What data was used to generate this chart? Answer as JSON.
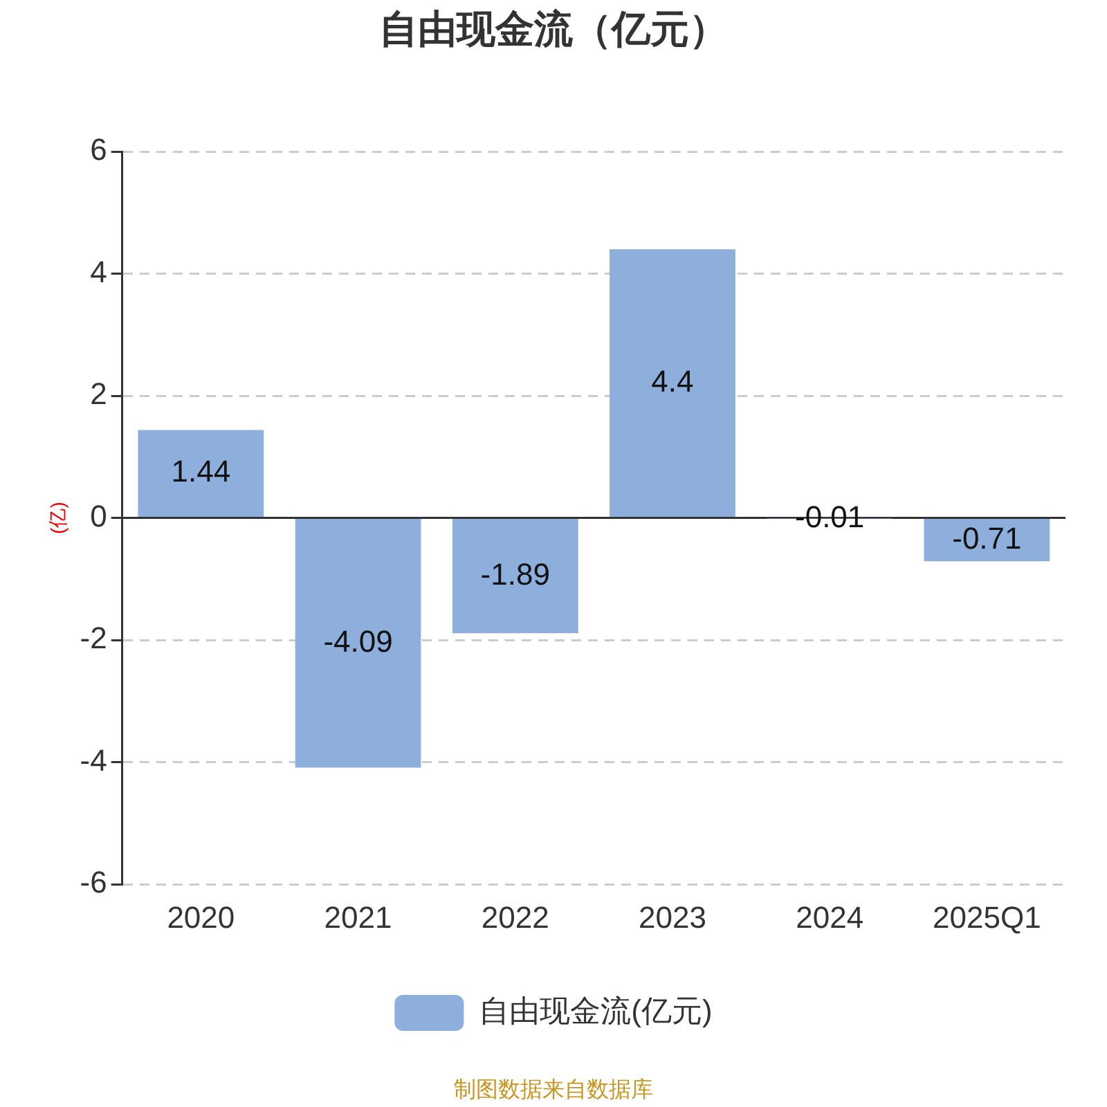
{
  "chart_data": {
    "type": "bar",
    "title": "自由现金流（亿元）",
    "ylabel": "(亿)",
    "categories": [
      "2020",
      "2021",
      "2022",
      "2023",
      "2024",
      "2025Q1"
    ],
    "series": [
      {
        "name": "自由现金流(亿元)",
        "color": "#8eaedb",
        "values": [
          1.44,
          -4.09,
          -1.89,
          4.4,
          -0.01,
          -0.71
        ]
      }
    ],
    "ylim": [
      -6,
      6
    ],
    "yticks": [
      -6,
      -4,
      -2,
      0,
      2,
      4,
      6
    ],
    "grid": "y",
    "legend": "bottom",
    "data_labels": true,
    "annotations": [
      "制图数据来自数据库"
    ]
  }
}
